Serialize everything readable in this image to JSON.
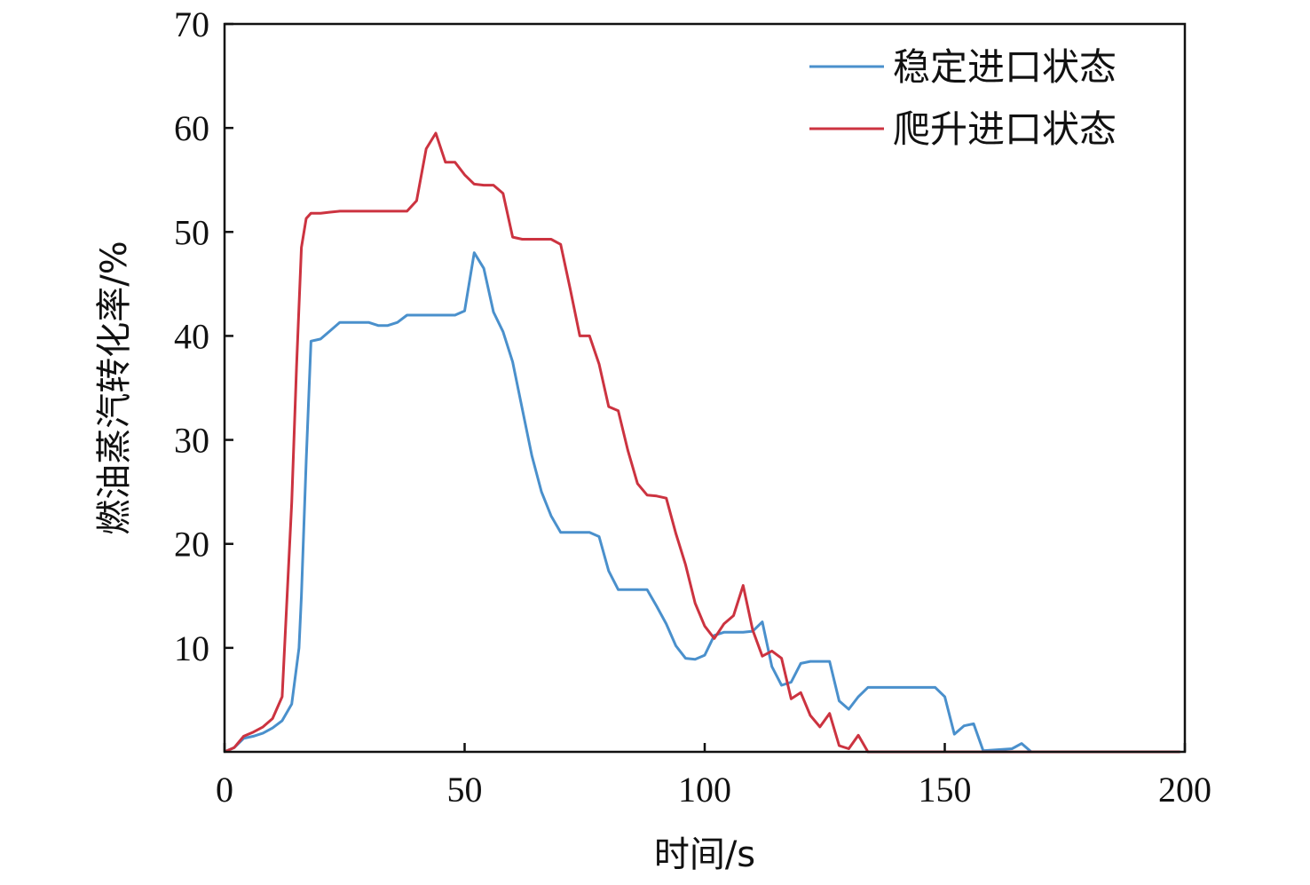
{
  "chart_data": {
    "type": "line",
    "title": "",
    "xlabel": "时间/s",
    "ylabel": "燃油蒸汽转化率/%",
    "xlim": [
      0,
      200
    ],
    "ylim": [
      0,
      70
    ],
    "xticks": [
      0,
      50,
      100,
      150,
      200
    ],
    "xtick_labels": [
      "0",
      "50",
      "100",
      "150",
      "200"
    ],
    "yticks": [
      10,
      20,
      30,
      40,
      50,
      60,
      70
    ],
    "ytick_labels": [
      "10",
      "20",
      "30",
      "40",
      "50",
      "60",
      "70"
    ],
    "grid": false,
    "legend_position": "top-right",
    "series": [
      {
        "name": "稳定进口状态",
        "color": "#4a90cc",
        "points": [
          [
            0,
            0
          ],
          [
            2,
            0.4
          ],
          [
            4,
            1.3
          ],
          [
            6,
            1.5
          ],
          [
            8,
            1.8
          ],
          [
            10,
            2.3
          ],
          [
            12,
            3
          ],
          [
            14,
            4.6
          ],
          [
            15.5,
            10
          ],
          [
            16,
            15
          ],
          [
            17,
            28
          ],
          [
            18,
            39.5
          ],
          [
            19,
            39.6
          ],
          [
            20,
            39.7
          ],
          [
            22,
            40.5
          ],
          [
            24,
            41.3
          ],
          [
            28,
            41.3
          ],
          [
            30,
            41.3
          ],
          [
            32,
            41
          ],
          [
            34,
            41
          ],
          [
            36,
            41.3
          ],
          [
            38,
            42
          ],
          [
            42,
            42
          ],
          [
            48,
            42
          ],
          [
            50,
            42.4
          ],
          [
            52,
            48
          ],
          [
            54,
            46.5
          ],
          [
            56,
            42.3
          ],
          [
            58,
            40.4
          ],
          [
            60,
            37.5
          ],
          [
            62,
            33
          ],
          [
            64,
            28.5
          ],
          [
            66,
            25
          ],
          [
            68,
            22.7
          ],
          [
            70,
            21.1
          ],
          [
            72,
            21.1
          ],
          [
            76,
            21.1
          ],
          [
            78,
            20.7
          ],
          [
            80,
            17.4
          ],
          [
            82,
            15.6
          ],
          [
            84,
            15.6
          ],
          [
            88,
            15.6
          ],
          [
            90,
            14
          ],
          [
            92,
            12.3
          ],
          [
            94,
            10.2
          ],
          [
            96,
            9
          ],
          [
            98,
            8.9
          ],
          [
            100,
            9.3
          ],
          [
            102,
            11.2
          ],
          [
            104,
            11.5
          ],
          [
            108,
            11.5
          ],
          [
            110,
            11.6
          ],
          [
            112,
            12.5
          ],
          [
            114,
            8.2
          ],
          [
            116,
            6.4
          ],
          [
            118,
            6.7
          ],
          [
            120,
            8.5
          ],
          [
            122,
            8.7
          ],
          [
            126,
            8.7
          ],
          [
            128,
            4.9
          ],
          [
            130,
            4.1
          ],
          [
            132,
            5.3
          ],
          [
            134,
            6.2
          ],
          [
            140,
            6.2
          ],
          [
            148,
            6.2
          ],
          [
            150,
            5.3
          ],
          [
            152,
            1.7
          ],
          [
            154,
            2.5
          ],
          [
            156,
            2.7
          ],
          [
            158,
            0.1
          ],
          [
            164,
            0.3
          ],
          [
            166,
            0.8
          ],
          [
            168,
            0
          ],
          [
            185,
            0
          ],
          [
            199,
            0
          ]
        ]
      },
      {
        "name": "爬升进口状态",
        "color": "#cc3340",
        "points": [
          [
            0,
            0
          ],
          [
            2,
            0.4
          ],
          [
            4,
            1.5
          ],
          [
            6,
            1.9
          ],
          [
            8,
            2.4
          ],
          [
            10,
            3.2
          ],
          [
            12,
            5.3
          ],
          [
            14,
            24
          ],
          [
            15,
            37
          ],
          [
            16,
            48.5
          ],
          [
            17,
            51.3
          ],
          [
            18,
            51.8
          ],
          [
            20,
            51.8
          ],
          [
            22,
            51.9
          ],
          [
            24,
            52
          ],
          [
            30,
            52
          ],
          [
            36,
            52
          ],
          [
            38,
            52
          ],
          [
            40,
            53
          ],
          [
            42,
            58
          ],
          [
            44,
            59.5
          ],
          [
            46,
            56.7
          ],
          [
            48,
            56.7
          ],
          [
            50,
            55.5
          ],
          [
            52,
            54.6
          ],
          [
            54,
            54.5
          ],
          [
            56,
            54.5
          ],
          [
            58,
            53.7
          ],
          [
            60,
            49.5
          ],
          [
            62,
            49.3
          ],
          [
            66,
            49.3
          ],
          [
            68,
            49.3
          ],
          [
            70,
            48.8
          ],
          [
            72,
            44.5
          ],
          [
            74,
            40
          ],
          [
            76,
            40
          ],
          [
            78,
            37.3
          ],
          [
            80,
            33.2
          ],
          [
            82,
            32.8
          ],
          [
            84,
            29
          ],
          [
            86,
            25.8
          ],
          [
            88,
            24.7
          ],
          [
            90,
            24.6
          ],
          [
            92,
            24.4
          ],
          [
            94,
            21
          ],
          [
            96,
            18
          ],
          [
            98,
            14.3
          ],
          [
            100,
            12.1
          ],
          [
            102,
            10.9
          ],
          [
            104,
            12.3
          ],
          [
            106,
            13.1
          ],
          [
            108,
            16
          ],
          [
            110,
            11.7
          ],
          [
            112,
            9.2
          ],
          [
            114,
            9.7
          ],
          [
            116,
            9
          ],
          [
            118,
            5.1
          ],
          [
            120,
            5.7
          ],
          [
            122,
            3.5
          ],
          [
            124,
            2.4
          ],
          [
            126,
            3.7
          ],
          [
            128,
            0.6
          ],
          [
            130,
            0.3
          ],
          [
            132,
            1.6
          ],
          [
            134,
            0
          ],
          [
            150,
            0
          ],
          [
            170,
            0
          ],
          [
            199,
            0
          ]
        ]
      }
    ]
  }
}
